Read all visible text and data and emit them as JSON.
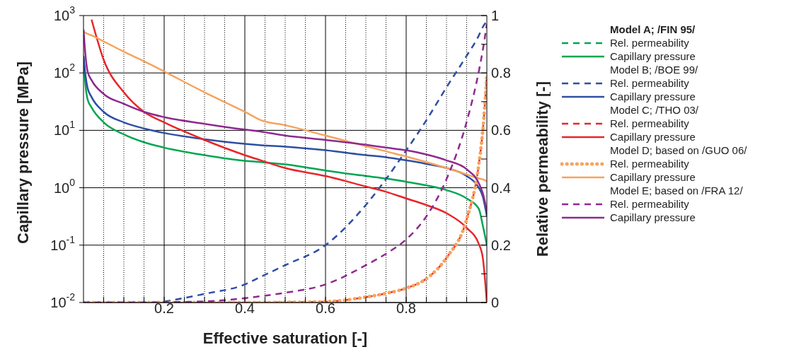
{
  "chart_data": {
    "type": "line",
    "xlabel": "Effective saturation [-]",
    "ylabel": "Capillary pressure  [MPa]",
    "y2label": "Relative permeability [-]",
    "x": [
      0,
      0.005,
      0.01,
      0.02,
      0.05,
      0.1,
      0.15,
      0.2,
      0.3,
      0.4,
      0.44,
      0.5,
      0.6,
      0.7,
      0.75,
      0.8,
      0.85,
      0.9,
      0.95,
      0.98,
      0.99,
      1
    ],
    "xlim": [
      0,
      1
    ],
    "xticks": [
      {
        "value": 0.05,
        "label": null
      },
      {
        "value": 0.1,
        "label": null
      },
      {
        "value": 0.15,
        "label": null
      },
      0.2,
      {
        "value": 0.25,
        "label": null
      },
      {
        "value": 0.3,
        "label": null
      },
      {
        "value": 0.35,
        "label": null
      },
      0.4,
      {
        "value": 0.45,
        "label": null
      },
      {
        "value": 0.5,
        "label": null
      },
      {
        "value": 0.55,
        "label": null
      },
      0.6,
      {
        "value": 0.65,
        "label": null
      },
      {
        "value": 0.7,
        "label": null
      },
      {
        "value": 0.75,
        "label": null
      },
      0.8,
      {
        "value": 0.85,
        "label": null
      },
      {
        "value": 0.9,
        "label": null
      },
      {
        "value": 0.95,
        "label": null
      }
    ],
    "log": "y",
    "ylim": [
      0.01,
      1000
    ],
    "yticks": [
      {
        "value": 0.01,
        "label": "10$^{-2}$"
      },
      {
        "value": 0.1,
        "label": "10$^{-1}$"
      },
      {
        "value": 1,
        "label": "10$^{0}$"
      },
      {
        "value": 10,
        "label": "10$^{1}$"
      },
      {
        "value": 100,
        "label": "10$^{2}$"
      },
      {
        "value": 1000,
        "label": "10$^{3}$"
      }
    ],
    "y2lim": [
      0,
      1
    ],
    "y2ticks": [
      0,
      {
        "value": 0.1,
        "label": null
      },
      0.2,
      {
        "value": 0.3,
        "label": null
      },
      0.4,
      {
        "value": 0.5,
        "label": null
      },
      0.6,
      {
        "value": 0.7,
        "label": null
      },
      0.8,
      {
        "value": 0.9,
        "label": null
      },
      1
    ],
    "grid": true,
    "legend": "right",
    "marker": "none",
    "annotations": [
      "Model A; /FIN 95/",
      "Model B; /BOE 99/",
      "Model C; /THO 03/",
      "Model D; based on /GUO 06/",
      "Model E; based on /FRA 12/"
    ],
    "series": [
      {
        "name": "Rel. permeability",
        "color": "#00a651",
        "axis": "y2",
        "line_style": "dashed",
        "values": [
          null,
          null,
          null,
          null,
          null,
          null,
          null,
          null,
          null,
          null,
          null,
          null,
          null,
          null,
          null,
          null,
          null,
          null,
          null,
          null,
          null,
          null
        ]
      },
      {
        "name": "Capillary pressure",
        "color": "#00a651",
        "line_style": "solid",
        "values": [
          190,
          60,
          35,
          25,
          13.8,
          8.5,
          6.2,
          5.0,
          3.7,
          2.95,
          2.8,
          2.55,
          2.0,
          1.6,
          1.45,
          1.27,
          1.1,
          0.91,
          0.65,
          0.43,
          0.22,
          0.1
        ]
      },
      {
        "name": "Rel. permeability",
        "color": "#2e4fa3",
        "axis": "y2",
        "line_style": "dashed",
        "values": [
          null,
          null,
          null,
          null,
          null,
          null,
          null,
          0.003,
          0.03,
          0.063,
          0.09,
          0.13,
          0.2,
          0.34,
          0.43,
          0.53,
          0.635,
          0.75,
          0.86,
          0.93,
          0.96,
          0.98
        ]
      },
      {
        "name": "Capillary pressure",
        "color": "#2e4fa3",
        "line_style": "solid",
        "values": [
          200,
          90,
          55,
          38,
          21,
          13.8,
          10.8,
          9,
          7.0,
          5.8,
          5.5,
          5.2,
          4.5,
          3.7,
          3.4,
          3.0,
          2.6,
          2.2,
          1.6,
          1.0,
          0.7,
          0.32
        ]
      },
      {
        "name": "Rel. permeability",
        "color": "#e8262a",
        "axis": "y2",
        "line_style": "dashed",
        "values": [
          0,
          0,
          0,
          0,
          0,
          0,
          0,
          0,
          0,
          0,
          0,
          0.001,
          0.003,
          0.019,
          0.032,
          0.05,
          0.083,
          0.156,
          0.29,
          0.48,
          0.6,
          0.79
        ]
      },
      {
        "name": "Capillary pressure",
        "color": "#e8262a",
        "line_style": "solid",
        "values": [
          null,
          null,
          null,
          850,
          170,
          46,
          21,
          13.8,
          6.8,
          3.7,
          3.0,
          2.2,
          1.6,
          1.05,
          0.85,
          0.65,
          0.5,
          0.36,
          0.2,
          0.105,
          0.06,
          0.01
        ]
      },
      {
        "name": "Rel. permeability",
        "color": "#f7a35c",
        "axis": "y2",
        "line_style": "dotted",
        "values": [
          0,
          0,
          0,
          0,
          0,
          0,
          0,
          0,
          0,
          0,
          0,
          0.001,
          0.003,
          0.019,
          0.032,
          0.05,
          0.083,
          0.156,
          0.29,
          0.48,
          0.6,
          0.79
        ]
      },
      {
        "name": "Capillary pressure",
        "color": "#f7a35c",
        "line_style": "solid",
        "values": [
          525,
          500,
          480,
          450,
          355,
          234,
          160,
          106,
          46,
          21,
          15,
          12.3,
          8.1,
          5.3,
          4.3,
          3.5,
          2.8,
          2.2,
          1.7,
          1.45,
          1.4,
          1.3
        ]
      },
      {
        "name": "Rel. permeability",
        "color": "#8e2a8e",
        "axis": "y2",
        "line_style": "dashed",
        "values": [
          0,
          0,
          0,
          0,
          0,
          0,
          0,
          0.001,
          0.004,
          0.015,
          0.022,
          0.034,
          0.063,
          0.13,
          0.17,
          0.22,
          0.3,
          0.43,
          0.63,
          0.805,
          0.88,
          0.97
        ]
      },
      {
        "name": "Capillary pressure",
        "color": "#8e2a8e",
        "line_style": "solid",
        "values": [
          570,
          200,
          107,
          75,
          43,
          29,
          21,
          17,
          13,
          10.3,
          9.5,
          8.1,
          6.8,
          5.6,
          5.0,
          4.5,
          3.8,
          3.0,
          2.1,
          1.2,
          0.8,
          0.39
        ]
      }
    ]
  }
}
